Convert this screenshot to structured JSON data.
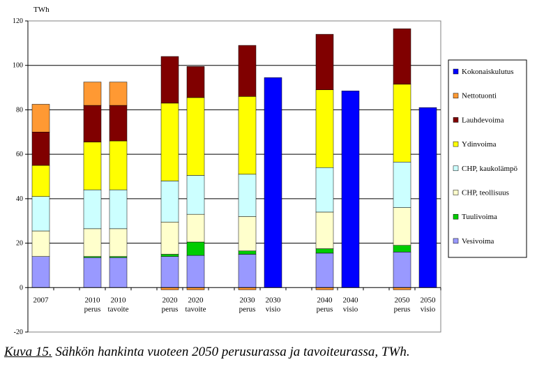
{
  "chart_data": {
    "type": "bar",
    "stacked": true,
    "ylabel": "TWh",
    "ylim": [
      -20,
      120
    ],
    "yticks": [
      -20,
      0,
      20,
      40,
      60,
      80,
      100,
      120
    ],
    "grid": true,
    "legend_position": "right",
    "categories": [
      [
        "2007"
      ],
      [
        "2010",
        "perus"
      ],
      [
        "2010",
        "tavoite"
      ],
      [
        "2020",
        "perus"
      ],
      [
        "2020",
        "tavoite"
      ],
      [
        "2030",
        "perus"
      ],
      [
        "2030",
        "visio"
      ],
      [
        "2040",
        "perus"
      ],
      [
        "2040",
        "visio"
      ],
      [
        "2050",
        "perus"
      ],
      [
        "2050",
        "visio"
      ]
    ],
    "series": [
      {
        "name": "Vesivoima",
        "color": "#9999ff",
        "values": [
          14,
          13.5,
          13.5,
          14,
          14.5,
          15,
          0,
          15.5,
          0,
          16,
          0
        ]
      },
      {
        "name": "Tuulivoima",
        "color": "#00cc00",
        "values": [
          0,
          0.5,
          0.5,
          1,
          6,
          1.5,
          0,
          2,
          0,
          3,
          0
        ]
      },
      {
        "name": "CHP, teollisuus",
        "color": "#ffffcc",
        "values": [
          11.5,
          12.5,
          12.5,
          14.5,
          12.5,
          15.5,
          0,
          16.5,
          0,
          17,
          0
        ]
      },
      {
        "name": "CHP, kaukolämpö",
        "color": "#ccffff",
        "values": [
          15.5,
          17.5,
          17.5,
          18.5,
          17.5,
          19,
          0,
          20,
          0,
          20.5,
          0
        ]
      },
      {
        "name": "Ydinvoima",
        "color": "#ffff00",
        "values": [
          14,
          21.5,
          22,
          35,
          35,
          35,
          0,
          35,
          0,
          35,
          0
        ]
      },
      {
        "name": "Lauhdevoima",
        "color": "#800000",
        "values": [
          15,
          16.5,
          16,
          21,
          14,
          23,
          0,
          25,
          0,
          25,
          0
        ]
      },
      {
        "name": "Nettotuonti",
        "color": "#ff9933",
        "values": [
          12.5,
          10.5,
          10.5,
          0,
          0,
          0,
          0,
          0,
          0,
          0,
          0
        ]
      },
      {
        "name": "Kokonaiskulutus",
        "color": "#0000ff",
        "values": [
          0,
          0,
          0,
          0,
          0,
          0,
          94.5,
          0,
          88.5,
          0,
          81
        ]
      }
    ],
    "negative_values": [
      0,
      0,
      0,
      -1,
      -1,
      -1,
      0,
      -1,
      0,
      -1,
      0
    ]
  },
  "caption": {
    "number": "Kuva 15.",
    "text": " Sähkön hankinta vuoteen 2050 perusurassa ja tavoiteurassa, TWh."
  }
}
